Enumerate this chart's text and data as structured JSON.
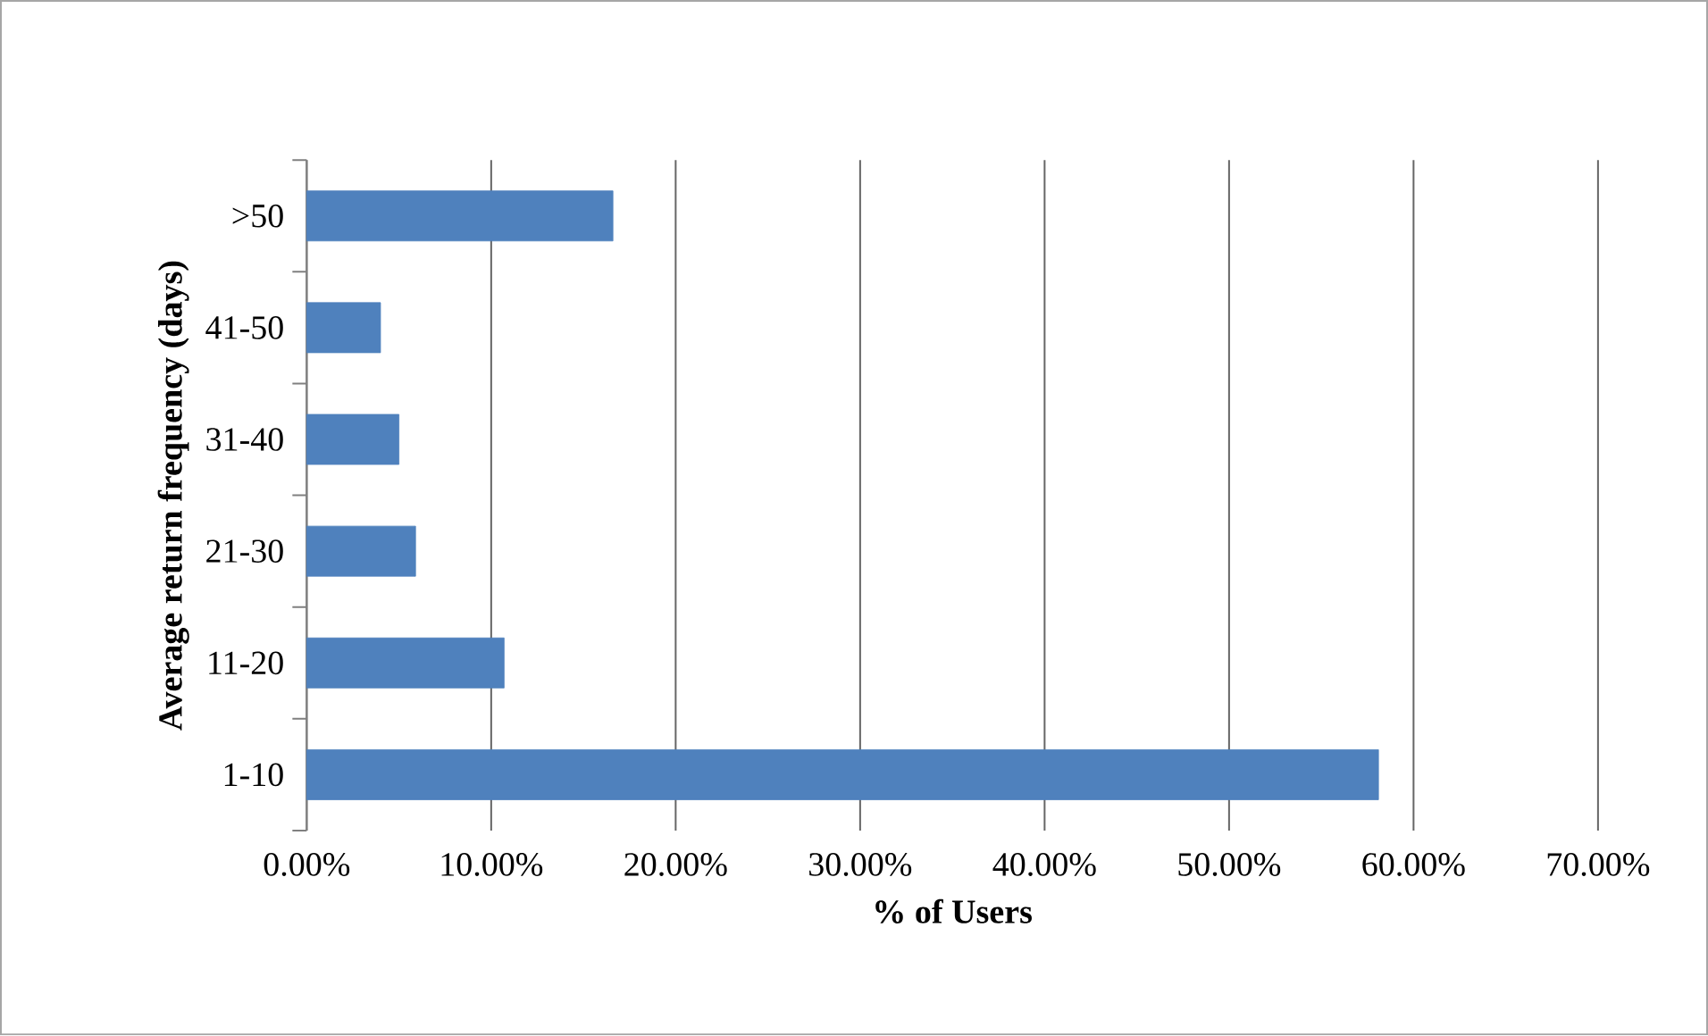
{
  "chart_data": {
    "type": "bar",
    "orientation": "horizontal",
    "xlabel": "% of Users",
    "ylabel": "Average return frequency (days)",
    "categories": [
      ">50",
      "41-50",
      "31-40",
      "21-30",
      "11-20",
      "1-10"
    ],
    "values": [
      16.6,
      4.0,
      5.0,
      5.9,
      10.7,
      58.1
    ],
    "color": "#4f81bd",
    "xlim": [
      0,
      70
    ],
    "xticks": [
      {
        "value": 0,
        "label": "0.00%"
      },
      {
        "value": 10,
        "label": "10.00%"
      },
      {
        "value": 20,
        "label": "20.00%"
      },
      {
        "value": 30,
        "label": "30.00%"
      },
      {
        "value": 40,
        "label": "40.00%"
      },
      {
        "value": 50,
        "label": "50.00%"
      },
      {
        "value": 60,
        "label": "60.00%"
      },
      {
        "value": 70,
        "label": "70.00%"
      }
    ],
    "grid": "x"
  }
}
